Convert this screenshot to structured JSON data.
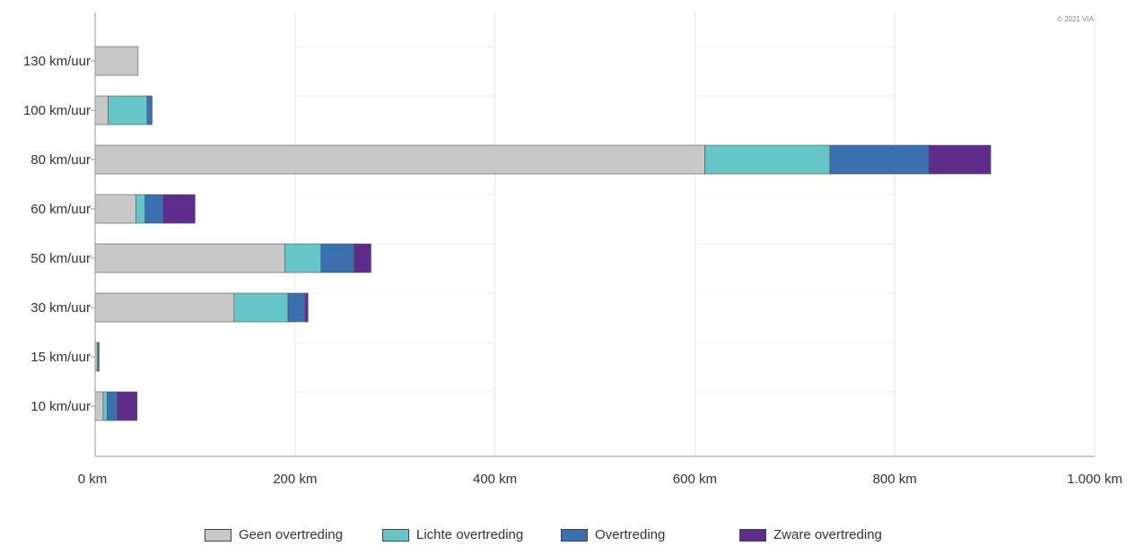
{
  "credit": "© 2021 VIA",
  "chart_data": {
    "type": "bar",
    "orientation": "horizontal",
    "stacked": true,
    "title": "",
    "xlabel": "",
    "ylabel": "",
    "xlim": [
      0,
      1000
    ],
    "x_ticks": [
      "0 km",
      "200 km",
      "400 km",
      "600 km",
      "800 km",
      "1.000 km"
    ],
    "x_tick_values": [
      0,
      200,
      400,
      600,
      800,
      1000
    ],
    "categories": [
      "130 km/uur",
      "100 km/uur",
      "80 km/uur",
      "60 km/uur",
      "50 km/uur",
      "30 km/uur",
      "15 km/uur",
      "10 km/uur"
    ],
    "series": [
      {
        "name": "Geen overtreding",
        "color": "#c8c8c8",
        "values": [
          43,
          13,
          610,
          41,
          190,
          139,
          2,
          8
        ]
      },
      {
        "name": "Lichte overtreding",
        "color": "#66c5c7",
        "values": [
          0,
          39,
          125,
          9,
          36,
          54,
          1,
          4
        ]
      },
      {
        "name": "Overtreding",
        "color": "#3a6fb0",
        "values": [
          0,
          5,
          99,
          18,
          33,
          17,
          1,
          10
        ]
      },
      {
        "name": "Zware overtreding",
        "color": "#5e2d8c",
        "values": [
          0,
          0,
          62,
          32,
          17,
          3,
          0,
          20
        ]
      }
    ],
    "grid": true,
    "legend_position": "bottom"
  }
}
